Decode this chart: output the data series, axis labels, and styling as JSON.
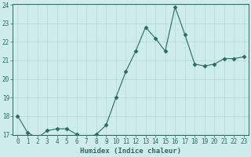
{
  "x": [
    0,
    1,
    2,
    3,
    4,
    5,
    6,
    7,
    8,
    9,
    10,
    11,
    12,
    13,
    14,
    15,
    16,
    17,
    18,
    19,
    20,
    21,
    22,
    23
  ],
  "y": [
    18.0,
    17.1,
    16.8,
    17.2,
    17.3,
    17.3,
    17.0,
    16.8,
    17.0,
    17.5,
    19.0,
    20.4,
    21.5,
    22.8,
    22.2,
    21.5,
    23.9,
    22.4,
    20.8,
    20.7,
    20.8,
    21.1,
    21.1,
    21.2
  ],
  "xlabel": "Humidex (Indice chaleur)",
  "ylim": [
    17,
    24
  ],
  "xlim": [
    -0.5,
    23.5
  ],
  "yticks": [
    17,
    18,
    19,
    20,
    21,
    22,
    23,
    24
  ],
  "xticks": [
    0,
    1,
    2,
    3,
    4,
    5,
    6,
    7,
    8,
    9,
    10,
    11,
    12,
    13,
    14,
    15,
    16,
    17,
    18,
    19,
    20,
    21,
    22,
    23
  ],
  "line_color": "#2e6b5e",
  "marker": "D",
  "marker_size": 2.5,
  "bg_color": "#cdecea",
  "grid_color": "#b8d8d5",
  "text_color": "#2e6b5e",
  "tick_fontsize": 5.5,
  "xlabel_fontsize": 6.5
}
